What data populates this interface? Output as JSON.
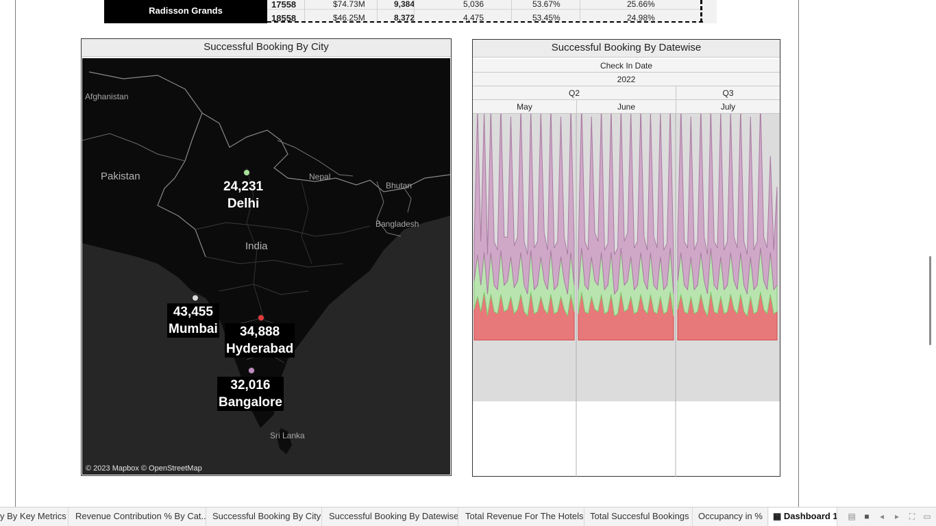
{
  "top_table": {
    "hotel_name": "Radisson Grands",
    "rows": [
      {
        "id": "17558",
        "revenue": "$74.73M",
        "bookings": "9,384",
        "col4": "5,036",
        "col5": "53.67%",
        "col6": "25.66%"
      },
      {
        "id": "18558",
        "revenue": "$46.25M",
        "bookings": "8,372",
        "col4": "4,475",
        "col5": "53.45%",
        "col6": "24.98%"
      }
    ]
  },
  "map_panel": {
    "title": "Successful Booking By City",
    "attribution": "© 2023 Mapbox © OpenStreetMap",
    "places": {
      "afghanistan": "Afghanistan",
      "pakistan": "Pakistan",
      "nepal": "Nepal",
      "bhutan": "Bhutan",
      "bangladesh": "Bangladesh",
      "india": "India",
      "sri_lanka": "Sri Lanka"
    },
    "cities": [
      {
        "name": "Delhi",
        "value": "24,231",
        "color": "#a6e39a"
      },
      {
        "name": "Mumbai",
        "value": "43,455",
        "color": "#d9d9d9"
      },
      {
        "name": "Hyderabad",
        "value": "34,888",
        "color": "#e03a3a"
      },
      {
        "name": "Bangalore",
        "value": "32,016",
        "color": "#c08cc0"
      }
    ]
  },
  "date_panel": {
    "title": "Successful Booking By Datewise",
    "header": {
      "field": "Check In Date",
      "year": "2022",
      "quarters": [
        "Q2",
        "Q3"
      ],
      "months": [
        "May",
        "June",
        "July"
      ]
    }
  },
  "chart_data": {
    "type": "area",
    "stacked": true,
    "x_label": "Check In Date",
    "months": [
      "May",
      "June",
      "July"
    ],
    "colors": {
      "background": "#dcdcdc",
      "red": "#e8797a",
      "green": "#b9e4b0",
      "purple": "#cfa8c8"
    },
    "series": [
      {
        "values": [
          14,
          20,
          13,
          22,
          11,
          21,
          13,
          12,
          21,
          13,
          14,
          20,
          12,
          14,
          21,
          13,
          11,
          22,
          12,
          13,
          20,
          14,
          12,
          21,
          12,
          13,
          20,
          14,
          11,
          21,
          13,
          12,
          22,
          13,
          12,
          20,
          14,
          13,
          21,
          12,
          13,
          21,
          11,
          12,
          22,
          13,
          14,
          20,
          12,
          13,
          21,
          14,
          12,
          21,
          13,
          12,
          20,
          12,
          13,
          22,
          11,
          14,
          21,
          13,
          12,
          20,
          12,
          13,
          21,
          14,
          11,
          22,
          13,
          12,
          20,
          12,
          13,
          21,
          14,
          12,
          21,
          13,
          11,
          20,
          12,
          13,
          22,
          14,
          12,
          21,
          12,
          13
        ]
      },
      {
        "values": [
          13,
          19,
          12,
          18,
          10,
          19,
          12,
          11,
          20,
          12,
          13,
          18,
          12,
          13,
          19,
          12,
          10,
          19,
          11,
          12,
          18,
          13,
          11,
          20,
          11,
          12,
          18,
          13,
          10,
          19,
          12,
          11,
          20,
          12,
          11,
          18,
          13,
          12,
          19,
          11,
          12,
          19,
          10,
          11,
          20,
          12,
          13,
          18,
          11,
          12,
          19,
          13,
          11,
          19,
          12,
          11,
          18,
          11,
          12,
          20,
          10,
          13,
          19,
          12,
          11,
          18,
          11,
          12,
          19,
          13,
          10,
          20,
          12,
          11,
          18,
          11,
          12,
          19,
          13,
          11,
          19,
          12,
          10,
          18,
          11,
          12,
          20,
          13,
          11,
          19,
          11,
          12
        ]
      },
      {
        "values": [
          18,
          66,
          20,
          64,
          18,
          66,
          20,
          18,
          66,
          22,
          20,
          64,
          19,
          20,
          66,
          20,
          18,
          64,
          19,
          20,
          66,
          22,
          18,
          66,
          19,
          20,
          64,
          20,
          18,
          66,
          20,
          19,
          66,
          20,
          18,
          64,
          22,
          20,
          66,
          18,
          19,
          66,
          18,
          19,
          64,
          20,
          22,
          66,
          19,
          20,
          66,
          20,
          18,
          64,
          22,
          19,
          66,
          18,
          19,
          64,
          18,
          20,
          66,
          20,
          19,
          64,
          18,
          20,
          66,
          20,
          18,
          64,
          20,
          19,
          66,
          18,
          20,
          64,
          20,
          19,
          66,
          20,
          18,
          64,
          18,
          20,
          66,
          20,
          19,
          44,
          18,
          45
        ]
      }
    ]
  },
  "tabs": [
    {
      "label": "y By Key Metrics",
      "active": false
    },
    {
      "label": "Revenue Contribution % By Cat...",
      "active": false
    },
    {
      "label": "Successful Booking By City",
      "active": false
    },
    {
      "label": "Successful Booking By Datewise",
      "active": false
    },
    {
      "label": "Total Revenue For The Hotels",
      "active": false
    },
    {
      "label": "Total Succesful Bookings",
      "active": false
    },
    {
      "label": "Occupancy in %",
      "active": false
    },
    {
      "label": "Dashboard 1",
      "active": true
    }
  ],
  "tab_icons": [
    "grid-icon",
    "sheet-icon",
    "prev-icon",
    "next-icon",
    "fullscreen-icon",
    "presentation-icon"
  ]
}
